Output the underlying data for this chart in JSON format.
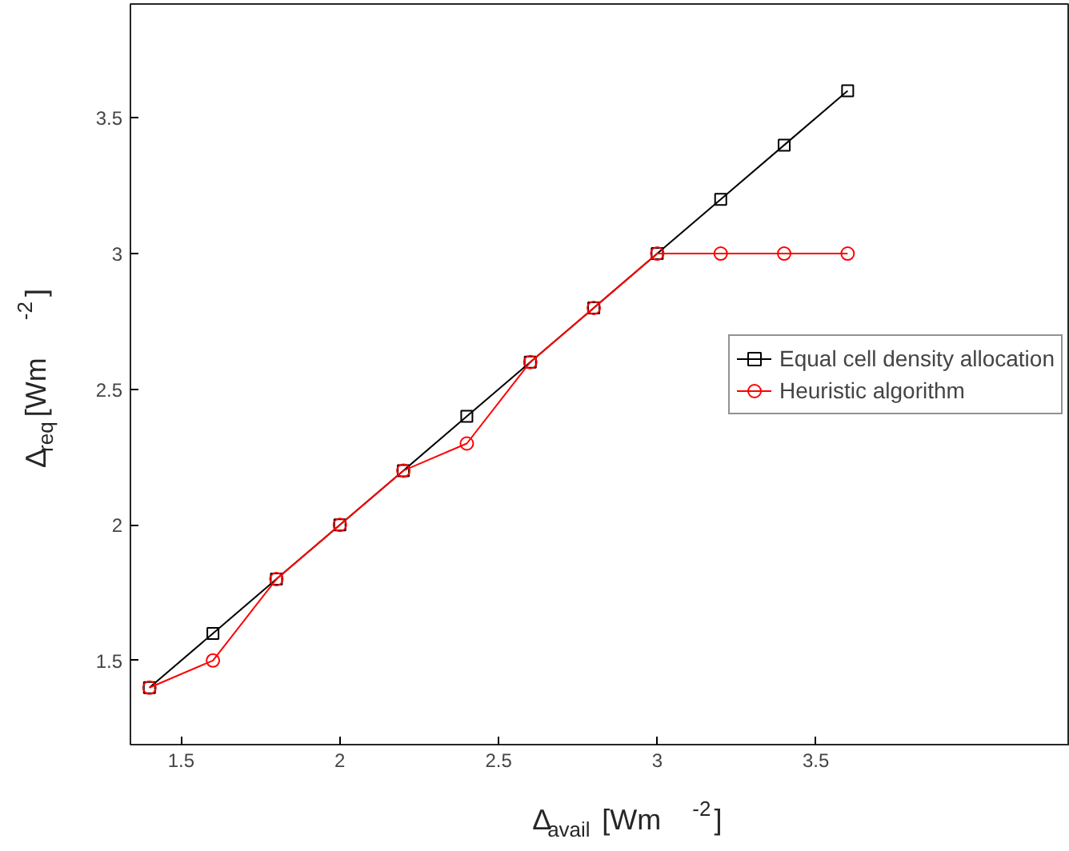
{
  "chart_data": {
    "type": "line",
    "xlabel": "Δ$_{avail}$  [Wm $^{-2}$]",
    "ylabel": "Δ$_{req}$  [Wm $^{-2}$]",
    "x": [
      1.4,
      1.6,
      1.8,
      2.0,
      2.2,
      2.4,
      2.6,
      2.8,
      3.0,
      3.2,
      3.4,
      3.6
    ],
    "series": [
      {
        "name": "Equal cell density allocation",
        "color": "#000000",
        "marker": "square",
        "values": [
          1.4,
          1.6,
          1.8,
          2.0,
          2.2,
          2.4,
          2.6,
          2.8,
          3.0,
          3.2,
          3.4,
          3.6
        ]
      },
      {
        "name": "Heuristic algorithm",
        "color": "#ff0000",
        "marker": "circle",
        "values": [
          1.4,
          1.5,
          1.8,
          2.0,
          2.2,
          2.3,
          2.6,
          2.8,
          3.0,
          3.0,
          3.0,
          3.0
        ]
      }
    ],
    "xlim": [
      1.34,
      4.3
    ],
    "ylim": [
      1.19,
      3.92
    ],
    "xticks": [
      1.5,
      2,
      2.5,
      3,
      3.5
    ],
    "yticks": [
      1.5,
      2,
      2.5,
      3,
      3.5
    ],
    "grid": false,
    "legend": "right",
    "line_style": "solid"
  }
}
